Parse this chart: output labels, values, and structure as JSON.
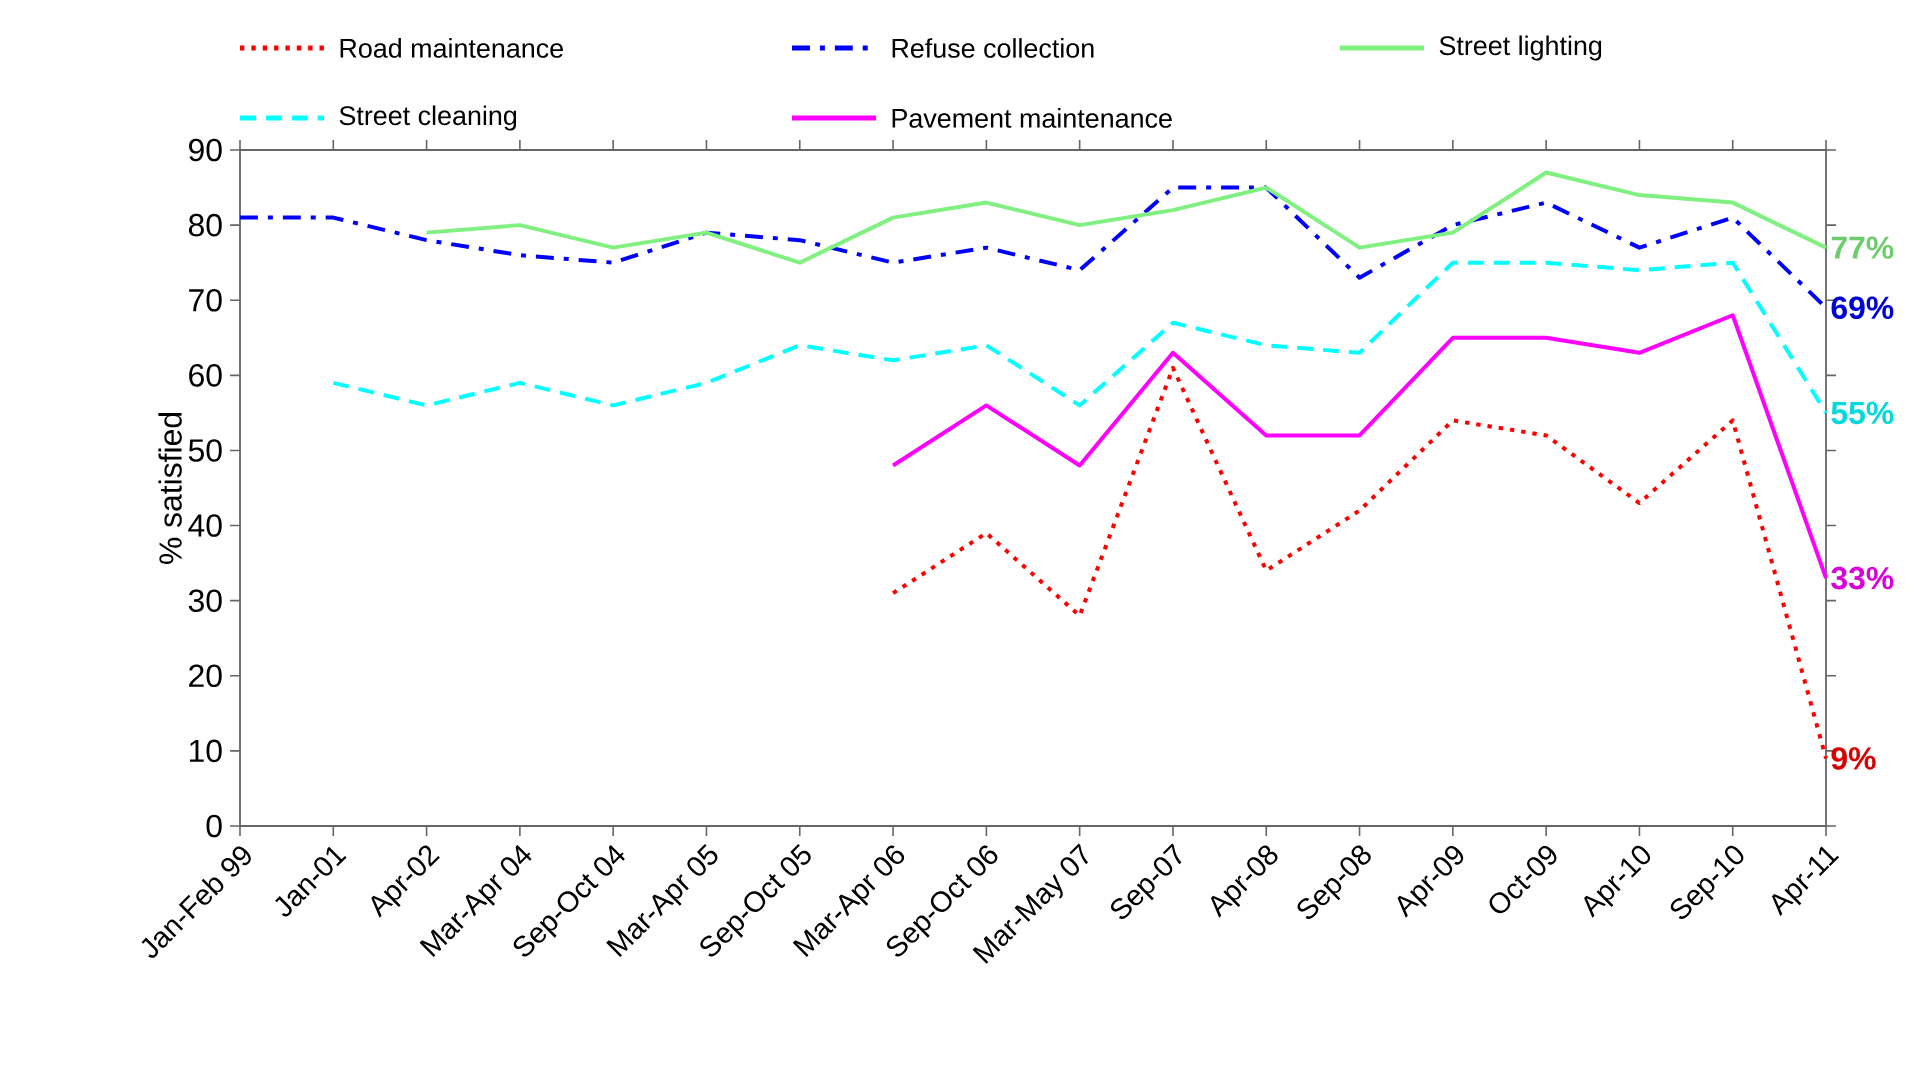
{
  "chart_data": {
    "type": "line",
    "ylabel": "% satisfied",
    "categories": [
      "Jan-Feb 99",
      "Jan-01",
      "Apr-02",
      "Mar-Apr 04",
      "Sep-Oct 04",
      "Mar-Apr 05",
      "Sep-Oct 05",
      "Mar-Apr 06",
      "Sep-Oct 06",
      "Mar-May 07",
      "Sep-07",
      "Apr-08",
      "Sep-08",
      "Apr-09",
      "Oct-09",
      "Apr-10",
      "Sep-10",
      "Apr-11"
    ],
    "series": [
      {
        "name": "Road maintenance",
        "color": "#ff0000",
        "line_style": "dotted",
        "values": [
          null,
          null,
          null,
          null,
          null,
          null,
          null,
          31,
          39,
          28,
          61,
          34,
          42,
          54,
          52,
          43,
          54,
          9
        ],
        "value_labels": [
          null,
          null,
          null,
          null,
          null,
          null,
          null,
          null,
          null,
          null,
          null,
          null,
          null,
          null,
          null,
          null,
          null,
          "9%"
        ]
      },
      {
        "name": "Refuse collection",
        "color": "#0000ff",
        "line_style": "dashdot",
        "values": [
          81,
          81,
          78,
          76,
          75,
          79,
          78,
          75,
          77,
          74,
          85,
          85,
          73,
          80,
          83,
          77,
          81,
          69
        ],
        "value_labels": [
          null,
          null,
          null,
          null,
          null,
          null,
          null,
          null,
          null,
          null,
          null,
          null,
          null,
          null,
          null,
          null,
          null,
          "69%"
        ]
      },
      {
        "name": "Street lighting",
        "color": "#80f080",
        "line_style": "solid",
        "values": [
          null,
          null,
          79,
          80,
          77,
          79,
          75,
          81,
          83,
          80,
          82,
          85,
          77,
          79,
          87,
          84,
          83,
          77
        ],
        "value_labels": [
          null,
          null,
          null,
          null,
          null,
          null,
          null,
          null,
          null,
          null,
          null,
          null,
          null,
          null,
          null,
          null,
          null,
          "77%"
        ]
      },
      {
        "name": "Street cleaning",
        "color": "#00ffff",
        "line_style": "dashed",
        "values": [
          null,
          59,
          56,
          59,
          56,
          59,
          64,
          62,
          64,
          56,
          67,
          64,
          63,
          75,
          75,
          74,
          75,
          55
        ],
        "value_labels": [
          null,
          null,
          null,
          null,
          null,
          null,
          null,
          null,
          null,
          null,
          null,
          null,
          null,
          null,
          null,
          null,
          null,
          "55%"
        ]
      },
      {
        "name": "Pavement maintenance",
        "color": "#ff00ff",
        "line_style": "solid",
        "values": [
          null,
          null,
          null,
          null,
          null,
          null,
          null,
          48,
          56,
          48,
          63,
          52,
          52,
          65,
          65,
          63,
          68,
          33
        ],
        "value_labels": [
          null,
          null,
          null,
          null,
          null,
          null,
          null,
          null,
          null,
          null,
          null,
          null,
          null,
          null,
          null,
          null,
          null,
          "33%"
        ]
      }
    ],
    "ylim": [
      0,
      90
    ],
    "yticks": [
      0,
      10,
      20,
      30,
      40,
      50,
      60,
      70,
      80,
      90
    ],
    "grid": false,
    "legend": "top",
    "marker": "none"
  }
}
